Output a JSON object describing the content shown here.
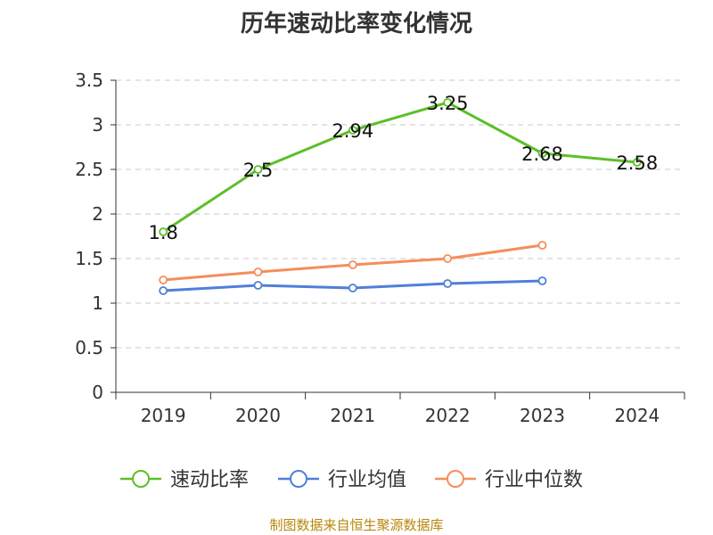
{
  "title": "历年速动比率变化情况",
  "source": "制图数据来自恒生聚源数据库",
  "colors": {
    "quick_ratio": "#5dbf29",
    "industry_avg": "#4f7fd9",
    "industry_median": "#f68d5a",
    "axis": "#333333",
    "grid": "#c8c8c8",
    "label": "#111111"
  },
  "chart_data": {
    "type": "line",
    "categories": [
      "2019",
      "2020",
      "2021",
      "2022",
      "2023",
      "2024"
    ],
    "ylim": [
      0,
      3.5
    ],
    "yticks": [
      "0",
      "0.5",
      "1",
      "1.5",
      "2",
      "2.5",
      "3",
      "3.5"
    ],
    "grid": true,
    "legend_position": "bottom",
    "series": [
      {
        "name": "速动比率",
        "color_key": "quick_ratio",
        "values": [
          1.8,
          2.5,
          2.94,
          3.25,
          2.68,
          2.58
        ],
        "labels": [
          "1.8",
          "2.5",
          "2.94",
          "3.25",
          "2.68",
          "2.58"
        ]
      },
      {
        "name": "行业均值",
        "color_key": "industry_avg",
        "values": [
          1.14,
          1.2,
          1.17,
          1.22,
          1.25,
          null
        ]
      },
      {
        "name": "行业中位数",
        "color_key": "industry_median",
        "values": [
          1.26,
          1.35,
          1.43,
          1.5,
          1.65,
          null
        ]
      }
    ]
  }
}
